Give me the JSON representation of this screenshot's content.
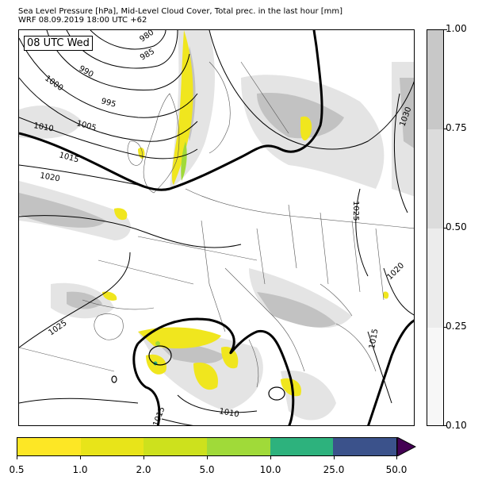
{
  "title_line1": "Sea Level Pressure [hPa], Mid-Level Cloud Cover, Total prec. in the last hour [mm]",
  "title_line2": "WRF 08.09.2019 18:00 UTC +62",
  "time_label": "08 UTC Wed",
  "cloud_colorbar": {
    "ticks": [
      "1.00",
      "0.75",
      "0.50",
      "0.25",
      "0.10"
    ],
    "colors": [
      "#c8c8c8",
      "#dcdcdc",
      "#ececec",
      "#f7f7f7"
    ]
  },
  "precip_colorbar": {
    "ticks": [
      "0.5",
      "1.0",
      "2.0",
      "5.0",
      "10.0",
      "25.0",
      "50.0"
    ],
    "colors": [
      "#fde725",
      "#e8e419",
      "#cde11d",
      "#a0da39",
      "#2db27d",
      "#3b528b"
    ],
    "extend_color": "#440154"
  },
  "isobar_labels": [
    "980",
    "985",
    "990",
    "995",
    "1000",
    "1005",
    "1010",
    "1015",
    "1020",
    "1025",
    "1030",
    "1025",
    "1020",
    "1015",
    "1010",
    "1015",
    "1025"
  ],
  "colors": {
    "cloud_light": "#e6e6e6",
    "cloud_dark": "#c4c4c4",
    "isobar": "#000000",
    "border": "#555555"
  }
}
